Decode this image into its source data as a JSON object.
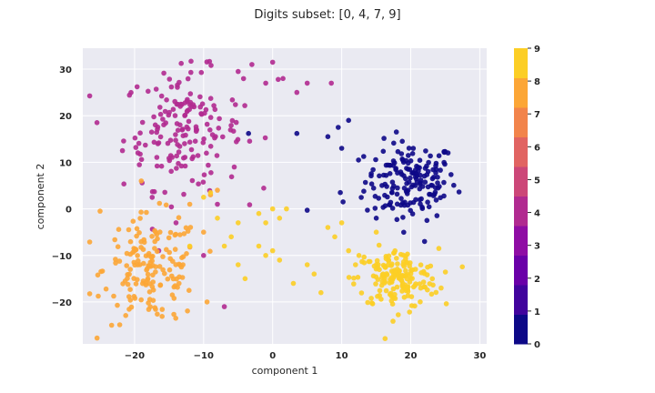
{
  "chart_data": {
    "type": "scatter",
    "title": "Digits subset: [0, 4, 7, 9]",
    "xlabel": "component 1",
    "ylabel": "component 2",
    "xlim": [
      -27.5,
      31
    ],
    "ylim": [
      -29,
      34.5
    ],
    "xticks": [
      -20,
      -10,
      0,
      10,
      20,
      30
    ],
    "yticks": [
      -20,
      -10,
      0,
      10,
      20,
      30
    ],
    "grid": true,
    "colorbar": {
      "range": [
        0,
        9
      ],
      "ticks": [
        0,
        1,
        2,
        3,
        4,
        5,
        6,
        7,
        8,
        9
      ],
      "colors": [
        "#0d0887",
        "#41049d",
        "#6a00a8",
        "#8f0da4",
        "#b12a90",
        "#cc4778",
        "#e16462",
        "#f2844b",
        "#fca636",
        "#fcce25"
      ]
    },
    "series": [
      {
        "label": 0,
        "color": "#0d0887",
        "center": [
          20,
          6
        ],
        "spread": [
          3.3,
          4.2
        ],
        "n": 170,
        "extra": [
          [
            3.5,
            16.2
          ],
          [
            -3.5,
            16.2
          ],
          [
            9.5,
            17.5
          ],
          [
            11,
            19
          ],
          [
            8,
            15.5
          ],
          [
            10,
            13
          ],
          [
            9.8,
            3.5
          ],
          [
            10.2,
            1.5
          ],
          [
            5,
            -0.3
          ],
          [
            22,
            -7
          ],
          [
            15,
            -2
          ],
          [
            18,
            -2.3
          ]
        ]
      },
      {
        "label": 4,
        "color": "#b12a90",
        "center": [
          -13,
          17
        ],
        "spread": [
          4.3,
          6.3
        ],
        "n": 175,
        "extra": [
          [
            -5,
            29.5
          ],
          [
            -3,
            31
          ],
          [
            -1,
            27
          ],
          [
            0,
            31.5
          ],
          [
            0.8,
            27.8
          ],
          [
            1.5,
            28
          ],
          [
            3.5,
            25
          ],
          [
            5,
            27
          ],
          [
            8.5,
            27
          ],
          [
            -8,
            1
          ],
          [
            -10,
            -10
          ],
          [
            -7,
            -21
          ],
          [
            -14,
            -3
          ],
          [
            -16.5,
            -9
          ]
        ]
      },
      {
        "label": 7,
        "color": "#fca636",
        "center": [
          -17.5,
          -13
        ],
        "spread": [
          3.5,
          5.8
        ],
        "n": 165,
        "extra": [
          [
            -25,
            -0.5
          ],
          [
            -12,
            1
          ],
          [
            -9,
            3
          ],
          [
            -8,
            4
          ],
          [
            -10,
            -5
          ],
          [
            -9.5,
            -20
          ],
          [
            -13,
            -12
          ]
        ]
      },
      {
        "label": 9,
        "color": "#fcce25",
        "center": [
          18,
          -15
        ],
        "spread": [
          3,
          3.2
        ],
        "n": 170,
        "extra": [
          [
            -10,
            2.5
          ],
          [
            -9,
            3.5
          ],
          [
            -5,
            -3
          ],
          [
            -2,
            -1
          ],
          [
            -1,
            -3
          ],
          [
            0,
            0
          ],
          [
            1,
            -2
          ],
          [
            2,
            0
          ],
          [
            -2,
            -8
          ],
          [
            -1,
            -10
          ],
          [
            0,
            -9
          ],
          [
            1,
            -11
          ],
          [
            3,
            -16
          ],
          [
            5,
            -12
          ],
          [
            6,
            -14
          ],
          [
            7,
            -18
          ],
          [
            8,
            -4
          ],
          [
            9,
            -6
          ],
          [
            10,
            -3
          ],
          [
            11,
            -9
          ],
          [
            12,
            -12
          ],
          [
            12.5,
            -10
          ],
          [
            -8,
            -2
          ],
          [
            -7,
            -8
          ],
          [
            -5,
            -12
          ],
          [
            -4,
            -15
          ],
          [
            -6,
            -6
          ],
          [
            -12,
            -8
          ],
          [
            15,
            -5
          ]
        ]
      }
    ]
  }
}
